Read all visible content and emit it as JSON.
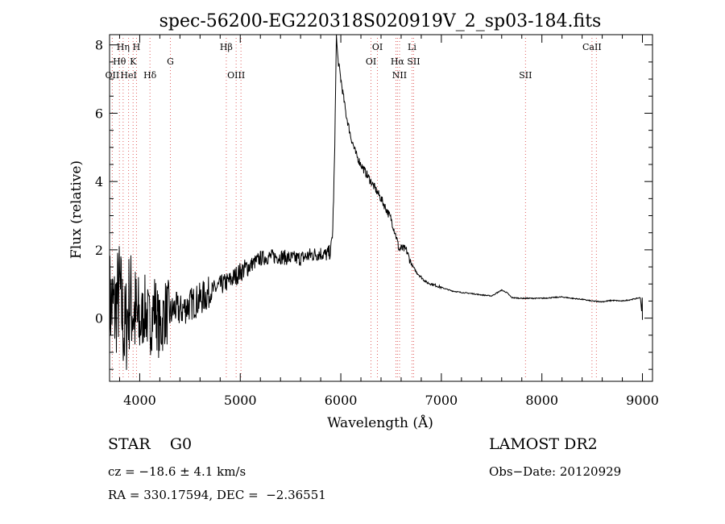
{
  "chart_data": {
    "type": "line",
    "title": "spec-56200-EG220318S020919V_2_sp03-184.fits",
    "xlabel": "Wavelength (Å)",
    "ylabel": "Flux (relative)",
    "xlim": [
      3700,
      9100
    ],
    "ylim": [
      -1.85,
      8.3
    ],
    "xticks": [
      4000,
      5000,
      6000,
      7000,
      8000,
      9000
    ],
    "yticks": [
      0,
      2,
      4,
      6,
      8
    ],
    "grid": false,
    "spectral_lines": [
      {
        "label": "OII",
        "x": 3727,
        "row": 3
      },
      {
        "label": "Hη",
        "x": 3835,
        "row": 1
      },
      {
        "label": "Hθ",
        "x": 3798,
        "row": 2
      },
      {
        "label": "HeI",
        "x": 3889,
        "row": 3
      },
      {
        "label": "H",
        "x": 3968,
        "row": 1
      },
      {
        "label": "K",
        "x": 3934,
        "row": 2
      },
      {
        "label": "Hδ",
        "x": 4102,
        "row": 3
      },
      {
        "label": "G",
        "x": 4305,
        "row": 2
      },
      {
        "label": "Hβ",
        "x": 4861,
        "row": 1
      },
      {
        "label": "OIII",
        "x": 4959,
        "row": 3
      },
      {
        "label": "OIII",
        "x": 5007,
        "row": 0
      },
      {
        "label": "OI",
        "x": 6364,
        "row": 1
      },
      {
        "label": "OI",
        "x": 6300,
        "row": 2
      },
      {
        "label": "Hα",
        "x": 6563,
        "row": 2
      },
      {
        "label": "NII",
        "x": 6584,
        "row": 3
      },
      {
        "label": "NII",
        "x": 6548,
        "row": 0
      },
      {
        "label": "Li",
        "x": 6708,
        "row": 1
      },
      {
        "label": "SII",
        "x": 6724,
        "row": 2
      },
      {
        "label": "SII",
        "x": 7837,
        "row": 3
      },
      {
        "label": "CaII",
        "x": 8498,
        "row": 1
      },
      {
        "label": "CaII",
        "x": 8542,
        "row": 0
      }
    ],
    "series": [
      {
        "x": [
          3700,
          3750,
          3800,
          3850,
          3900,
          3950,
          4000,
          4050,
          4100,
          4150,
          4200,
          4250,
          4300,
          4350,
          4400,
          4450,
          4500,
          4600,
          4700,
          4800,
          4900,
          5000,
          5100,
          5200,
          5300,
          5400,
          5500,
          5600,
          5700,
          5800,
          5850,
          5900,
          5920,
          5940,
          5955,
          5970,
          6000,
          6050,
          6100,
          6150,
          6200,
          6300,
          6400,
          6500,
          6550,
          6580,
          6600,
          6650,
          6700,
          6750,
          6800,
          6850,
          6900,
          7000,
          7100,
          7200,
          7300,
          7400,
          7500,
          7600,
          7650,
          7700,
          7800,
          7900,
          8000,
          8100,
          8200,
          8300,
          8400,
          8500,
          8600,
          8700,
          8800,
          8900,
          8980,
          9000
        ],
        "y": [
          0.5,
          0.2,
          0.8,
          -0.5,
          0.6,
          0.1,
          -0.3,
          0.3,
          -0.2,
          0.4,
          -0.4,
          0.2,
          0.1,
          0.3,
          0.2,
          0.3,
          0.4,
          0.55,
          0.75,
          0.95,
          1.1,
          1.35,
          1.55,
          1.75,
          1.8,
          1.8,
          1.75,
          1.75,
          1.85,
          1.9,
          1.85,
          1.95,
          2.6,
          5.0,
          8.3,
          7.6,
          7.0,
          6.0,
          5.3,
          4.8,
          4.5,
          4.0,
          3.5,
          2.9,
          2.4,
          2.0,
          2.05,
          2.0,
          1.6,
          1.35,
          1.2,
          1.05,
          1.0,
          0.9,
          0.8,
          0.75,
          0.72,
          0.68,
          0.65,
          0.82,
          0.75,
          0.6,
          0.58,
          0.58,
          0.58,
          0.6,
          0.62,
          0.58,
          0.55,
          0.5,
          0.48,
          0.52,
          0.5,
          0.55,
          0.6,
          -0.05
        ]
      }
    ]
  },
  "info": {
    "object_class": "STAR",
    "subclass": "G0",
    "survey": "LAMOST DR2",
    "cz": "cz = −18.6 ± 4.1 km/s",
    "obs_date": "Obs−Date: 20120929",
    "radec": "RA = 330.17594, DEC =  −2.36551"
  },
  "colors": {
    "line_marker": "#e06060",
    "spectrum": "#000000"
  }
}
